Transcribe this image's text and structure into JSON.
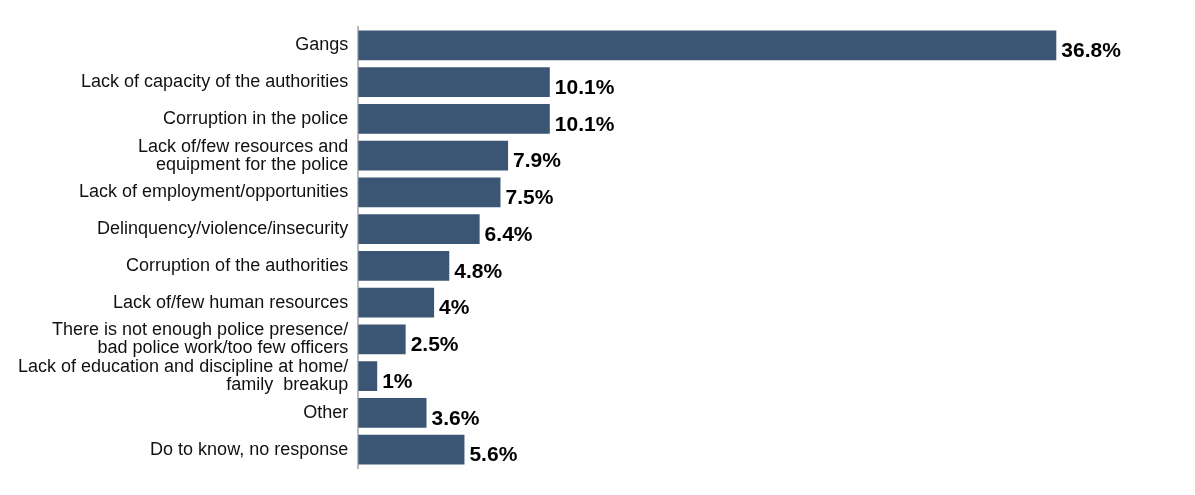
{
  "chart_data": {
    "type": "bar",
    "orientation": "horizontal",
    "color": "#3b5575",
    "categories": [
      "Gangs",
      "Lack of capacity of the authorities",
      "Corruption in the police",
      "Lack of/few resources and\nequipment for the police",
      "Lack of employment/opportunities",
      "Delinquency/violence/insecurity",
      "Corruption of the authorities",
      "Lack of/few human resources",
      "There is not enough police presence/\nbad police work/too few officers",
      "Lack of education and discipline at home/\nfamily  breakup",
      "Other",
      "Do to know, no response"
    ],
    "values": [
      36.8,
      10.1,
      10.1,
      7.9,
      7.5,
      6.4,
      4.8,
      4,
      2.5,
      1,
      3.6,
      5.6
    ],
    "value_labels": [
      "36.8%",
      "10.1%",
      "10.1%",
      "7.9%",
      "7.5%",
      "6.4%",
      "4.8%",
      "4%",
      "2.5%",
      "1%",
      "3.6%",
      "5.6%"
    ],
    "grid": false,
    "legend": false
  }
}
